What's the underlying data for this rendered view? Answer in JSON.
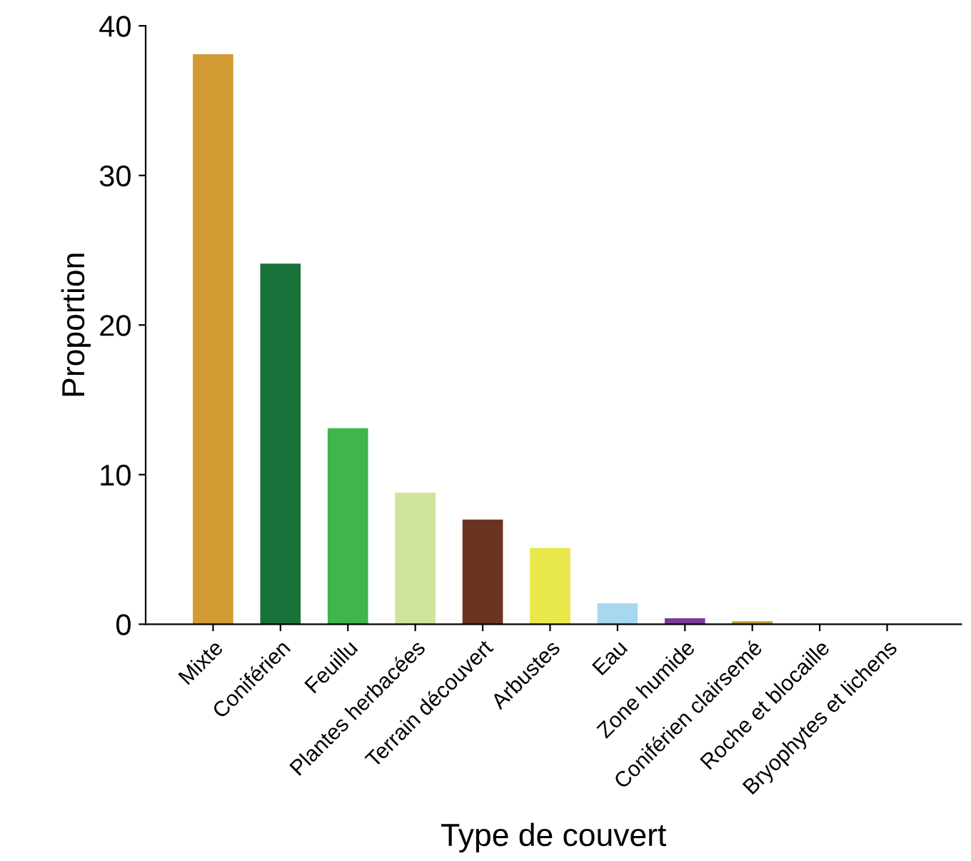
{
  "chart_data": {
    "type": "bar",
    "xlabel": "Type de couvert",
    "ylabel": "Proportion",
    "categories": [
      "Mixte",
      "Coniférien",
      "Feuillu",
      "Plantes herbacées",
      "Terrain découvert",
      "Arbustes",
      "Eau",
      "Zone humide",
      "Coniférien clairsemé",
      "Roche et blocaille",
      "Bryophytes et lichens"
    ],
    "values": [
      38.1,
      24.1,
      13.1,
      8.8,
      7.0,
      5.1,
      1.4,
      0.4,
      0.2,
      0,
      0
    ],
    "colors": [
      "#d19a32",
      "#17733a",
      "#3fb54a",
      "#cfe39a",
      "#6b3420",
      "#e8e84a",
      "#a8d8f0",
      "#7b3a9a",
      "#b8a030",
      "#9a9a9a",
      "#9a9a9a"
    ],
    "ylim": [
      0,
      40
    ],
    "yticks": [
      0,
      10,
      20,
      30,
      40
    ],
    "grid": false
  }
}
